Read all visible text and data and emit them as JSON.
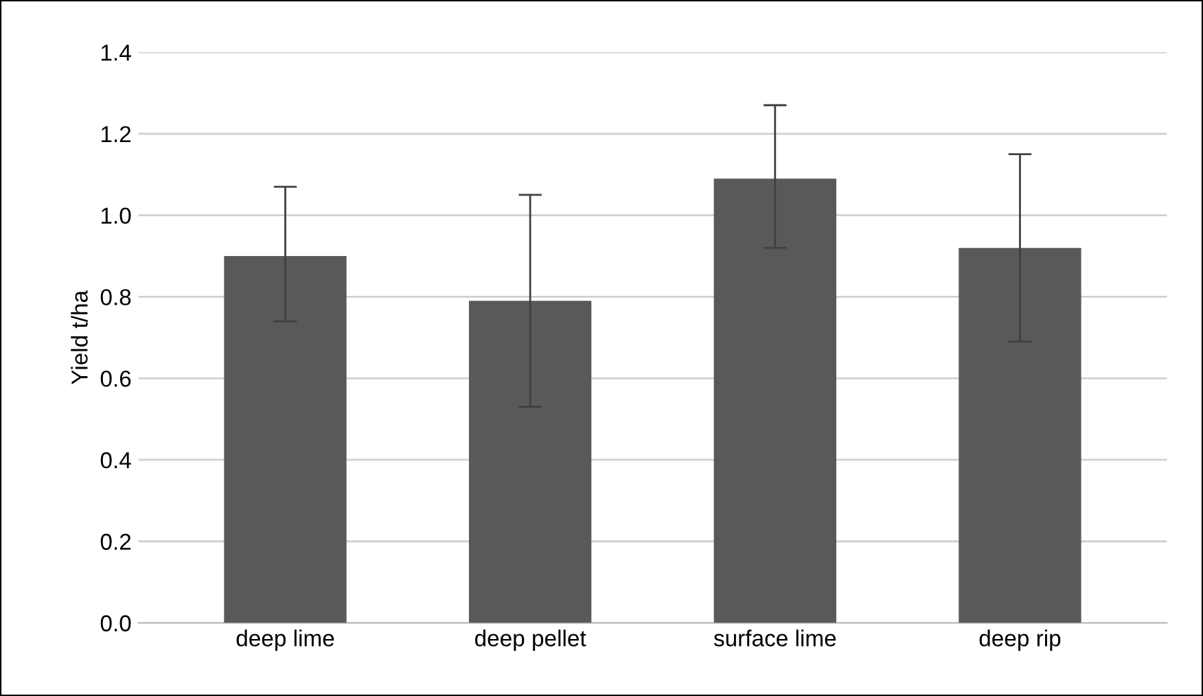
{
  "chart_data": {
    "type": "bar",
    "ylabel": "Yield t/ha",
    "categories": [
      "deep lime",
      "deep pellet",
      "surface lime",
      "deep rip"
    ],
    "values": [
      0.9,
      0.79,
      1.09,
      0.92
    ],
    "errors": [
      [
        0.74,
        1.07
      ],
      [
        0.53,
        1.05
      ],
      [
        0.92,
        1.27
      ],
      [
        0.69,
        1.15
      ]
    ],
    "color": "#595959",
    "ylim": [
      0,
      1.4
    ],
    "yticks": [
      {
        "value": 0,
        "label": "0.0"
      },
      {
        "value": 0.2,
        "label": "0.2"
      },
      {
        "value": 0.4,
        "label": "0.4"
      },
      {
        "value": 0.6,
        "label": "0.6"
      },
      {
        "value": 0.8,
        "label": "0.8"
      },
      {
        "value": 1.0,
        "label": "1.0"
      },
      {
        "value": 1.2,
        "label": "1.2"
      },
      {
        "value": 1.4,
        "label": "1.4"
      }
    ],
    "grid": "y"
  }
}
